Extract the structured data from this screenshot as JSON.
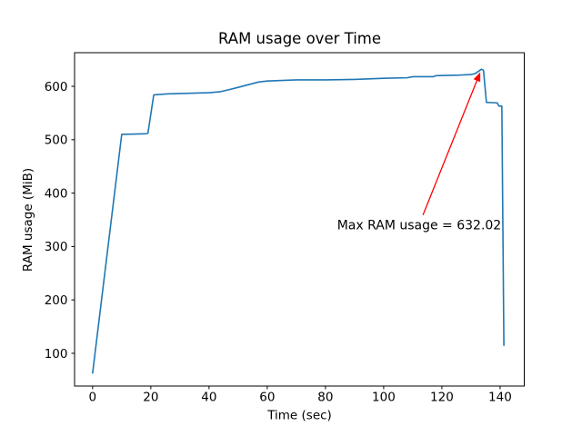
{
  "window": {
    "background": "#ffffff",
    "text_color": "#000000",
    "spine_color": "#000000"
  },
  "chart_data": {
    "type": "line",
    "title": "RAM usage over Time",
    "xlabel": "Time (sec)",
    "ylabel": "RAM usage (MiB)",
    "x_ticks": [
      0,
      20,
      40,
      60,
      80,
      100,
      120,
      140
    ],
    "y_ticks": [
      100,
      200,
      300,
      400,
      500,
      600
    ],
    "xlim": [
      -6.2,
      148.3
    ],
    "ylim": [
      38.7,
      663
    ],
    "grid": false,
    "legend_position": "none",
    "series": [
      {
        "name": "RAM usage (MiB)",
        "color": "#1f77b4",
        "points": [
          [
            0,
            63
          ],
          [
            10,
            510
          ],
          [
            18,
            511
          ],
          [
            19,
            512
          ],
          [
            21,
            584
          ],
          [
            26,
            586
          ],
          [
            40,
            588
          ],
          [
            44,
            590
          ],
          [
            50,
            598
          ],
          [
            57,
            608
          ],
          [
            60,
            610
          ],
          [
            70,
            612
          ],
          [
            80,
            612
          ],
          [
            90,
            613
          ],
          [
            100,
            615
          ],
          [
            108,
            616
          ],
          [
            110,
            618
          ],
          [
            117,
            618
          ],
          [
            118,
            620
          ],
          [
            126,
            621
          ],
          [
            130,
            622
          ],
          [
            131.5,
            624
          ],
          [
            133.6,
            632.02
          ],
          [
            134.3,
            630
          ],
          [
            135.3,
            570
          ],
          [
            139,
            569
          ],
          [
            139.6,
            563
          ],
          [
            140.6,
            563
          ],
          [
            141.3,
            115
          ]
        ]
      }
    ],
    "annotation": {
      "text": "Max RAM usage = 632.02",
      "color": "#ff0000",
      "max_value": 632.02,
      "text_pos": [
        84,
        340
      ],
      "arrow_tail": [
        113.5,
        359
      ],
      "arrow_tip": [
        133.6,
        632.02
      ]
    }
  }
}
